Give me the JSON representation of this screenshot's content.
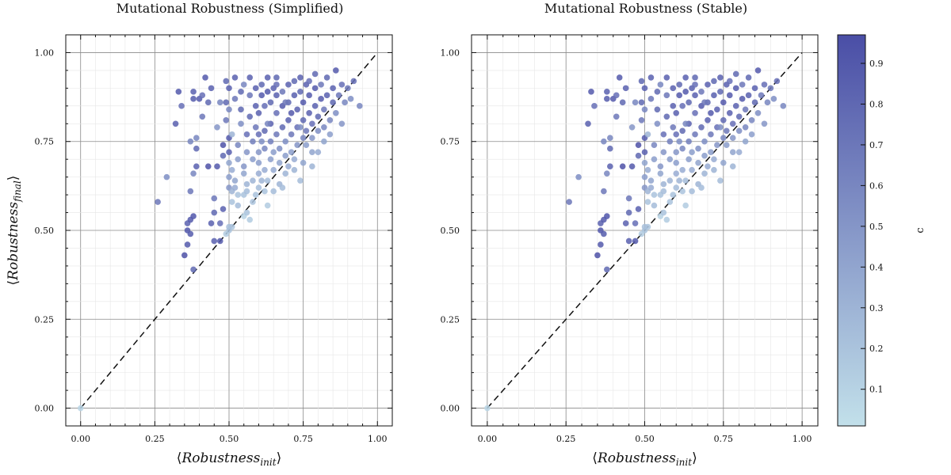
{
  "chart_data": [
    {
      "type": "scatter",
      "title": "Mutational Robustness (Simplified)",
      "xlabel": "⟨Robustness_init⟩",
      "ylabel": "⟨Robustness_final⟩",
      "xlim": [
        -0.05,
        1.05
      ],
      "ylim": [
        -0.05,
        1.05
      ],
      "xticks": [
        0.0,
        0.25,
        0.5,
        0.75,
        1.0
      ],
      "yticks": [
        0.0,
        0.25,
        0.5,
        0.75,
        1.0
      ],
      "tick_labels": [
        "0.00",
        "0.25",
        "0.50",
        "0.75",
        "1.00"
      ],
      "grid": true,
      "reference_line": {
        "style": "dashed",
        "from": [
          0,
          0
        ],
        "to": [
          1,
          1
        ]
      },
      "points": [
        [
          0.0,
          0.0,
          0.08
        ],
        [
          0.5,
          0.5,
          0.2
        ],
        [
          0.49,
          0.49,
          0.15
        ],
        [
          0.51,
          0.51,
          0.18
        ],
        [
          0.5,
          0.51,
          0.22
        ],
        [
          0.26,
          0.58,
          0.7
        ],
        [
          0.29,
          0.65,
          0.55
        ],
        [
          0.32,
          0.8,
          0.85
        ],
        [
          0.33,
          0.89,
          0.9
        ],
        [
          0.34,
          0.85,
          0.75
        ],
        [
          0.35,
          0.43,
          0.95
        ],
        [
          0.36,
          0.46,
          0.9
        ],
        [
          0.36,
          0.5,
          0.92
        ],
        [
          0.36,
          0.52,
          0.85
        ],
        [
          0.37,
          0.49,
          0.88
        ],
        [
          0.37,
          0.53,
          0.9
        ],
        [
          0.38,
          0.54,
          0.92
        ],
        [
          0.38,
          0.39,
          0.8
        ],
        [
          0.37,
          0.61,
          0.7
        ],
        [
          0.38,
          0.66,
          0.6
        ],
        [
          0.39,
          0.68,
          0.85
        ],
        [
          0.39,
          0.73,
          0.8
        ],
        [
          0.37,
          0.75,
          0.6
        ],
        [
          0.38,
          0.87,
          0.88
        ],
        [
          0.38,
          0.89,
          0.85
        ],
        [
          0.39,
          0.76,
          0.6
        ],
        [
          0.4,
          0.87,
          0.9
        ],
        [
          0.41,
          0.82,
          0.7
        ],
        [
          0.41,
          0.88,
          0.75
        ],
        [
          0.42,
          0.93,
          0.9
        ],
        [
          0.43,
          0.86,
          0.8
        ],
        [
          0.43,
          0.68,
          0.95
        ],
        [
          0.44,
          0.9,
          0.85
        ],
        [
          0.44,
          0.52,
          0.85
        ],
        [
          0.45,
          0.55,
          0.8
        ],
        [
          0.45,
          0.59,
          0.7
        ],
        [
          0.45,
          0.47,
          0.85
        ],
        [
          0.46,
          0.68,
          0.9
        ],
        [
          0.46,
          0.79,
          0.5
        ],
        [
          0.47,
          0.86,
          0.6
        ],
        [
          0.47,
          0.52,
          0.75
        ],
        [
          0.47,
          0.47,
          0.9
        ],
        [
          0.48,
          0.56,
          0.85
        ],
        [
          0.48,
          0.71,
          0.8
        ],
        [
          0.48,
          0.74,
          0.95
        ],
        [
          0.49,
          0.81,
          0.7
        ],
        [
          0.49,
          0.86,
          0.8
        ],
        [
          0.49,
          0.92,
          0.8
        ],
        [
          0.5,
          0.84,
          0.6
        ],
        [
          0.5,
          0.9,
          0.85
        ],
        [
          0.5,
          0.62,
          0.5
        ],
        [
          0.5,
          0.65,
          0.45
        ],
        [
          0.5,
          0.69,
          0.4
        ],
        [
          0.5,
          0.72,
          0.85
        ],
        [
          0.5,
          0.76,
          0.9
        ],
        [
          0.51,
          0.58,
          0.2
        ],
        [
          0.51,
          0.61,
          0.3
        ],
        [
          0.51,
          0.67,
          0.35
        ],
        [
          0.51,
          0.77,
          0.3
        ],
        [
          0.52,
          0.87,
          0.7
        ],
        [
          0.52,
          0.93,
          0.85
        ],
        [
          0.52,
          0.62,
          0.35
        ],
        [
          0.52,
          0.64,
          0.4
        ],
        [
          0.53,
          0.57,
          0.25
        ],
        [
          0.53,
          0.6,
          0.2
        ],
        [
          0.53,
          0.7,
          0.45
        ],
        [
          0.53,
          0.74,
          0.6
        ],
        [
          0.54,
          0.8,
          0.55
        ],
        [
          0.54,
          0.84,
          0.8
        ],
        [
          0.54,
          0.89,
          0.8
        ],
        [
          0.55,
          0.91,
          0.6
        ],
        [
          0.55,
          0.54,
          0.1
        ],
        [
          0.55,
          0.6,
          0.2
        ],
        [
          0.55,
          0.66,
          0.4
        ],
        [
          0.55,
          0.68,
          0.5
        ],
        [
          0.56,
          0.55,
          0.2
        ],
        [
          0.56,
          0.61,
          0.25
        ],
        [
          0.56,
          0.63,
          0.3
        ],
        [
          0.56,
          0.72,
          0.5
        ],
        [
          0.56,
          0.77,
          0.75
        ],
        [
          0.57,
          0.82,
          0.8
        ],
        [
          0.57,
          0.88,
          0.7
        ],
        [
          0.57,
          0.93,
          0.85
        ],
        [
          0.57,
          0.53,
          0.15
        ],
        [
          0.58,
          0.58,
          0.2
        ],
        [
          0.58,
          0.64,
          0.3
        ],
        [
          0.58,
          0.7,
          0.45
        ],
        [
          0.58,
          0.75,
          0.65
        ],
        [
          0.59,
          0.79,
          0.7
        ],
        [
          0.59,
          0.85,
          0.85
        ],
        [
          0.59,
          0.9,
          0.85
        ],
        [
          0.59,
          0.6,
          0.2
        ],
        [
          0.6,
          0.62,
          0.25
        ],
        [
          0.6,
          0.66,
          0.35
        ],
        [
          0.6,
          0.69,
          0.45
        ],
        [
          0.6,
          0.72,
          0.5
        ],
        [
          0.6,
          0.77,
          0.75
        ],
        [
          0.6,
          0.83,
          0.85
        ],
        [
          0.61,
          0.88,
          0.9
        ],
        [
          0.61,
          0.91,
          0.8
        ],
        [
          0.61,
          0.64,
          0.3
        ],
        [
          0.62,
          0.61,
          0.2
        ],
        [
          0.62,
          0.67,
          0.35
        ],
        [
          0.62,
          0.73,
          0.6
        ],
        [
          0.62,
          0.78,
          0.8
        ],
        [
          0.62,
          0.85,
          0.75
        ],
        [
          0.63,
          0.89,
          0.9
        ],
        [
          0.63,
          0.93,
          0.85
        ],
        [
          0.63,
          0.57,
          0.15
        ],
        [
          0.63,
          0.64,
          0.25
        ],
        [
          0.64,
          0.7,
          0.45
        ],
        [
          0.64,
          0.75,
          0.65
        ],
        [
          0.64,
          0.8,
          0.85
        ],
        [
          0.64,
          0.86,
          0.8
        ],
        [
          0.65,
          0.9,
          0.85
        ],
        [
          0.65,
          0.61,
          0.25
        ],
        [
          0.65,
          0.67,
          0.35
        ],
        [
          0.65,
          0.72,
          0.45
        ],
        [
          0.66,
          0.77,
          0.7
        ],
        [
          0.66,
          0.83,
          0.75
        ],
        [
          0.66,
          0.88,
          0.85
        ],
        [
          0.66,
          0.91,
          0.75
        ],
        [
          0.67,
          0.63,
          0.3
        ],
        [
          0.67,
          0.69,
          0.4
        ],
        [
          0.67,
          0.73,
          0.55
        ],
        [
          0.68,
          0.79,
          0.8
        ],
        [
          0.68,
          0.85,
          0.9
        ],
        [
          0.68,
          0.89,
          0.7
        ],
        [
          0.68,
          0.62,
          0.25
        ],
        [
          0.69,
          0.66,
          0.3
        ],
        [
          0.69,
          0.71,
          0.45
        ],
        [
          0.69,
          0.75,
          0.55
        ],
        [
          0.7,
          0.81,
          0.85
        ],
        [
          0.7,
          0.86,
          0.8
        ],
        [
          0.7,
          0.91,
          0.85
        ],
        [
          0.7,
          0.68,
          0.35
        ],
        [
          0.71,
          0.72,
          0.45
        ],
        [
          0.71,
          0.77,
          0.7
        ],
        [
          0.71,
          0.83,
          0.9
        ],
        [
          0.72,
          0.88,
          0.85
        ],
        [
          0.72,
          0.92,
          0.8
        ],
        [
          0.72,
          0.67,
          0.3
        ],
        [
          0.72,
          0.7,
          0.35
        ],
        [
          0.73,
          0.74,
          0.5
        ],
        [
          0.73,
          0.79,
          0.75
        ],
        [
          0.73,
          0.84,
          0.85
        ],
        [
          0.74,
          0.89,
          0.8
        ],
        [
          0.74,
          0.93,
          0.85
        ],
        [
          0.74,
          0.64,
          0.25
        ],
        [
          0.75,
          0.69,
          0.4
        ],
        [
          0.75,
          0.76,
          0.6
        ],
        [
          0.75,
          0.81,
          0.8
        ],
        [
          0.75,
          0.86,
          0.9
        ],
        [
          0.76,
          0.91,
          0.85
        ],
        [
          0.76,
          0.74,
          0.45
        ],
        [
          0.76,
          0.78,
          0.7
        ],
        [
          0.77,
          0.83,
          0.85
        ],
        [
          0.77,
          0.88,
          0.9
        ],
        [
          0.77,
          0.92,
          0.75
        ],
        [
          0.78,
          0.68,
          0.3
        ],
        [
          0.78,
          0.76,
          0.5
        ],
        [
          0.78,
          0.8,
          0.75
        ],
        [
          0.79,
          0.85,
          0.85
        ],
        [
          0.79,
          0.9,
          0.9
        ],
        [
          0.79,
          0.94,
          0.8
        ],
        [
          0.8,
          0.72,
          0.35
        ],
        [
          0.8,
          0.78,
          0.55
        ],
        [
          0.8,
          0.82,
          0.8
        ],
        [
          0.81,
          0.87,
          0.9
        ],
        [
          0.81,
          0.91,
          0.7
        ],
        [
          0.82,
          0.75,
          0.4
        ],
        [
          0.82,
          0.79,
          0.6
        ],
        [
          0.82,
          0.84,
          0.7
        ],
        [
          0.83,
          0.88,
          0.85
        ],
        [
          0.83,
          0.93,
          0.8
        ],
        [
          0.84,
          0.77,
          0.45
        ],
        [
          0.84,
          0.81,
          0.6
        ],
        [
          0.85,
          0.86,
          0.8
        ],
        [
          0.85,
          0.9,
          0.85
        ],
        [
          0.86,
          0.95,
          0.9
        ],
        [
          0.86,
          0.83,
          0.55
        ],
        [
          0.87,
          0.88,
          0.7
        ],
        [
          0.88,
          0.91,
          0.75
        ],
        [
          0.88,
          0.8,
          0.5
        ],
        [
          0.89,
          0.86,
          0.6
        ],
        [
          0.9,
          0.9,
          0.7
        ],
        [
          0.91,
          0.87,
          0.55
        ],
        [
          0.92,
          0.92,
          0.75
        ],
        [
          0.94,
          0.85,
          0.6
        ],
        [
          0.78,
          0.72,
          0.4
        ],
        [
          0.74,
          0.79,
          0.55
        ],
        [
          0.69,
          0.86,
          0.7
        ],
        [
          0.66,
          0.93,
          0.8
        ],
        [
          0.63,
          0.8,
          0.6
        ],
        [
          0.61,
          0.75,
          0.55
        ]
      ]
    },
    {
      "type": "scatter",
      "title": "Mutational Robustness (Stable)",
      "xlabel": "⟨Robustness_init⟩",
      "xlim": [
        -0.05,
        1.05
      ],
      "ylim": [
        -0.05,
        1.05
      ],
      "xticks": [
        0.0,
        0.25,
        0.5,
        0.75,
        1.0
      ],
      "yticks": [
        0.0,
        0.25,
        0.5,
        0.75,
        1.0
      ],
      "tick_labels": [
        "0.00",
        "0.25",
        "0.50",
        "0.75",
        "1.00"
      ],
      "grid": true,
      "reference_line": {
        "style": "dashed",
        "from": [
          0,
          0
        ],
        "to": [
          1,
          1
        ]
      },
      "points": "same as first panel"
    }
  ],
  "colorbar": {
    "label": "c",
    "range": [
      0.01,
      0.97
    ],
    "ticks": [
      0.1,
      0.2,
      0.3,
      0.4,
      0.5,
      0.6,
      0.7,
      0.8,
      0.9
    ],
    "color_low": "#c2e0ea",
    "color_high": "#4a4ea6"
  }
}
